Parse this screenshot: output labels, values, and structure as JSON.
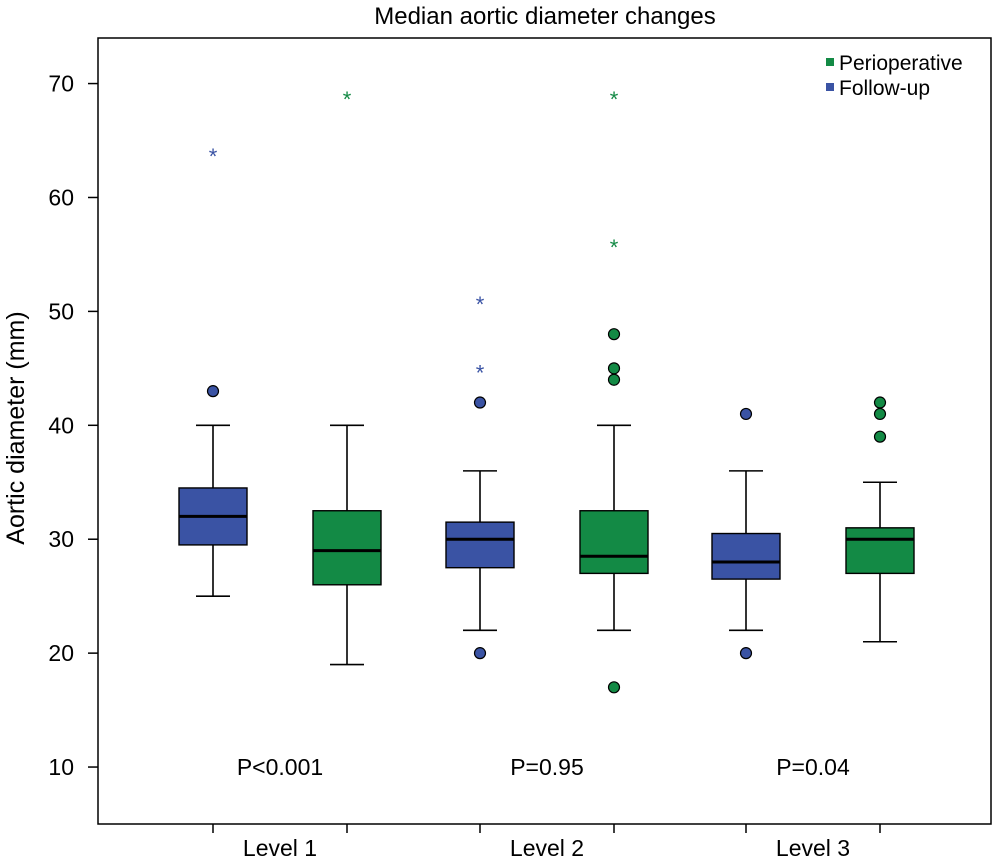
{
  "chart_data": {
    "type": "box",
    "title": "Median aortic diameter changes",
    "ylabel": "Aortic diameter (mm)",
    "xlabel": "",
    "ylim": [
      5,
      74
    ],
    "yticks": [
      10,
      20,
      30,
      40,
      50,
      60,
      70
    ],
    "grid": false,
    "legend_position": "top-right",
    "categories": [
      "Level 1",
      "Level 2",
      "Level 3"
    ],
    "series": [
      {
        "name": "Follow-up",
        "color": "#3a53a4"
      },
      {
        "name": "Perioperative",
        "color": "#138a45"
      }
    ],
    "legend": [
      {
        "name": "Perioperative",
        "color": "#138a45"
      },
      {
        "name": "Follow-up",
        "color": "#3a53a4"
      }
    ],
    "boxes": [
      {
        "category": "Level 1",
        "series": "Follow-up",
        "whisker_low": 25,
        "q1": 29.5,
        "median": 32,
        "q3": 34.5,
        "whisker_high": 40,
        "outliers": [
          43
        ],
        "extremes": [
          64
        ]
      },
      {
        "category": "Level 1",
        "series": "Perioperative",
        "whisker_low": 19,
        "q1": 26,
        "median": 29,
        "q3": 32.5,
        "whisker_high": 40,
        "outliers": [],
        "extremes": [
          69
        ]
      },
      {
        "category": "Level 2",
        "series": "Follow-up",
        "whisker_low": 22,
        "q1": 27.5,
        "median": 30,
        "q3": 31.5,
        "whisker_high": 36,
        "outliers": [
          20,
          42
        ],
        "extremes": [
          45,
          51
        ]
      },
      {
        "category": "Level 2",
        "series": "Perioperative",
        "whisker_low": 22,
        "q1": 27,
        "median": 28.5,
        "q3": 32.5,
        "whisker_high": 40,
        "outliers": [
          17,
          44,
          45,
          48
        ],
        "extremes": [
          56,
          69
        ]
      },
      {
        "category": "Level 3",
        "series": "Follow-up",
        "whisker_low": 22,
        "q1": 26.5,
        "median": 28,
        "q3": 30.5,
        "whisker_high": 36,
        "outliers": [
          20,
          41
        ],
        "extremes": []
      },
      {
        "category": "Level 3",
        "series": "Perioperative",
        "whisker_low": 21,
        "q1": 27,
        "median": 30,
        "q3": 31,
        "whisker_high": 35,
        "outliers": [
          39,
          41,
          42
        ],
        "extremes": []
      }
    ],
    "annotations": [
      {
        "category": "Level 1",
        "text": "P<0.001",
        "y": 10
      },
      {
        "category": "Level 2",
        "text": "P=0.95",
        "y": 10
      },
      {
        "category": "Level 3",
        "text": "P=0.04",
        "y": 10
      }
    ]
  }
}
